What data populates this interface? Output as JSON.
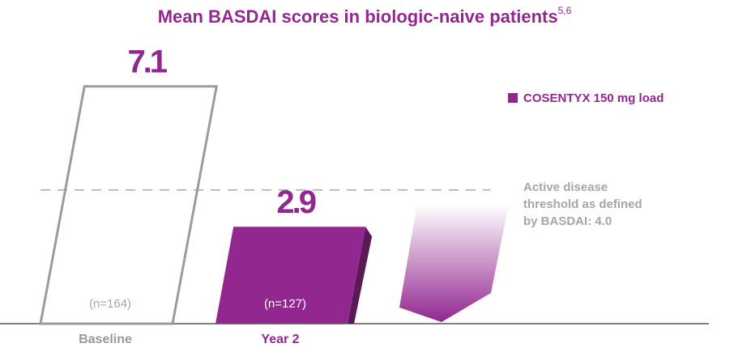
{
  "chart_data": {
    "type": "bar",
    "title": "Mean BASDAI scores in biologic-naive patients",
    "title_refs": "5,6",
    "categories": [
      "Baseline",
      "Year 2"
    ],
    "series": [
      {
        "name": "COSENTYX 150 mg load",
        "color": "#92278f",
        "values": [
          7.1,
          2.9
        ]
      }
    ],
    "n_labels": [
      "(n=164)",
      "(n=127)"
    ],
    "threshold": 4.0,
    "threshold_label": "Active disease threshold as defined by BASDAI: 4.0"
  }
}
